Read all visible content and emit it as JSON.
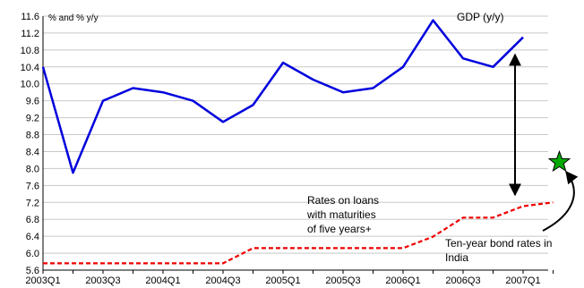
{
  "chart_data": {
    "type": "line",
    "title": "",
    "ylabel": "% and % y/y",
    "ylim": [
      5.6,
      11.6
    ],
    "yticks": [
      "11.6",
      "11.2",
      "10.8",
      "10.4",
      "10.0",
      "9.6",
      "9.2",
      "8.8",
      "8.4",
      "8.0",
      "7.6",
      "7.2",
      "6.8",
      "6.4",
      "6.0",
      "5.6"
    ],
    "ytick_values": [
      11.6,
      11.2,
      10.8,
      10.4,
      10.0,
      9.6,
      9.2,
      8.8,
      8.4,
      8.0,
      7.6,
      7.2,
      6.8,
      6.4,
      6.0,
      5.6
    ],
    "xtick_labels": [
      "2003Q1",
      "2003Q3",
      "2004Q1",
      "2004Q3",
      "2005Q1",
      "2005Q3",
      "2006Q1",
      "2006Q3",
      "2007Q1"
    ],
    "xtick_index": [
      0,
      2,
      4,
      6,
      8,
      10,
      12,
      14,
      16
    ],
    "grid": true,
    "series": [
      {
        "name": "GDP (y/y)",
        "color": "#0000dd",
        "style": "solid",
        "x": [
          "2003Q1",
          "2003Q2",
          "2003Q3",
          "2003Q4",
          "2004Q1",
          "2004Q2",
          "2004Q3",
          "2004Q4",
          "2005Q1",
          "2005Q2",
          "2005Q3",
          "2005Q4",
          "2006Q1",
          "2006Q2",
          "2006Q3",
          "2006Q4",
          "2007Q1"
        ],
        "values": [
          10.4,
          7.9,
          9.6,
          9.9,
          9.8,
          9.6,
          9.1,
          9.5,
          10.5,
          10.1,
          9.8,
          9.9,
          10.4,
          11.5,
          10.6,
          10.4,
          11.1
        ]
      },
      {
        "name": "Rates on loans with maturities of five years+",
        "color": "#ee0000",
        "style": "dashed",
        "x": [
          "2003Q1",
          "2003Q2",
          "2003Q3",
          "2003Q4",
          "2004Q1",
          "2004Q2",
          "2004Q3",
          "2004Q4",
          "2005Q1",
          "2005Q2",
          "2005Q3",
          "2005Q4",
          "2006Q1",
          "2006Q2",
          "2006Q3",
          "2006Q4",
          "2007Q1",
          "2007Q2"
        ],
        "values": [
          5.76,
          5.76,
          5.76,
          5.76,
          5.76,
          5.76,
          5.76,
          6.12,
          6.12,
          6.12,
          6.12,
          6.12,
          6.12,
          6.39,
          6.84,
          6.84,
          7.11,
          7.2
        ]
      }
    ],
    "annotations": {
      "gdp_label": "GDP (y/y)",
      "loan_label_lines": [
        "Rates on loans",
        "with maturities",
        "of five years+"
      ],
      "bond_label_lines": [
        "Ten-year bond rates in",
        "India"
      ],
      "bond_marker": {
        "x": "2007Q2",
        "value": 8.15,
        "shape": "star",
        "color": "#00aa00"
      }
    }
  }
}
